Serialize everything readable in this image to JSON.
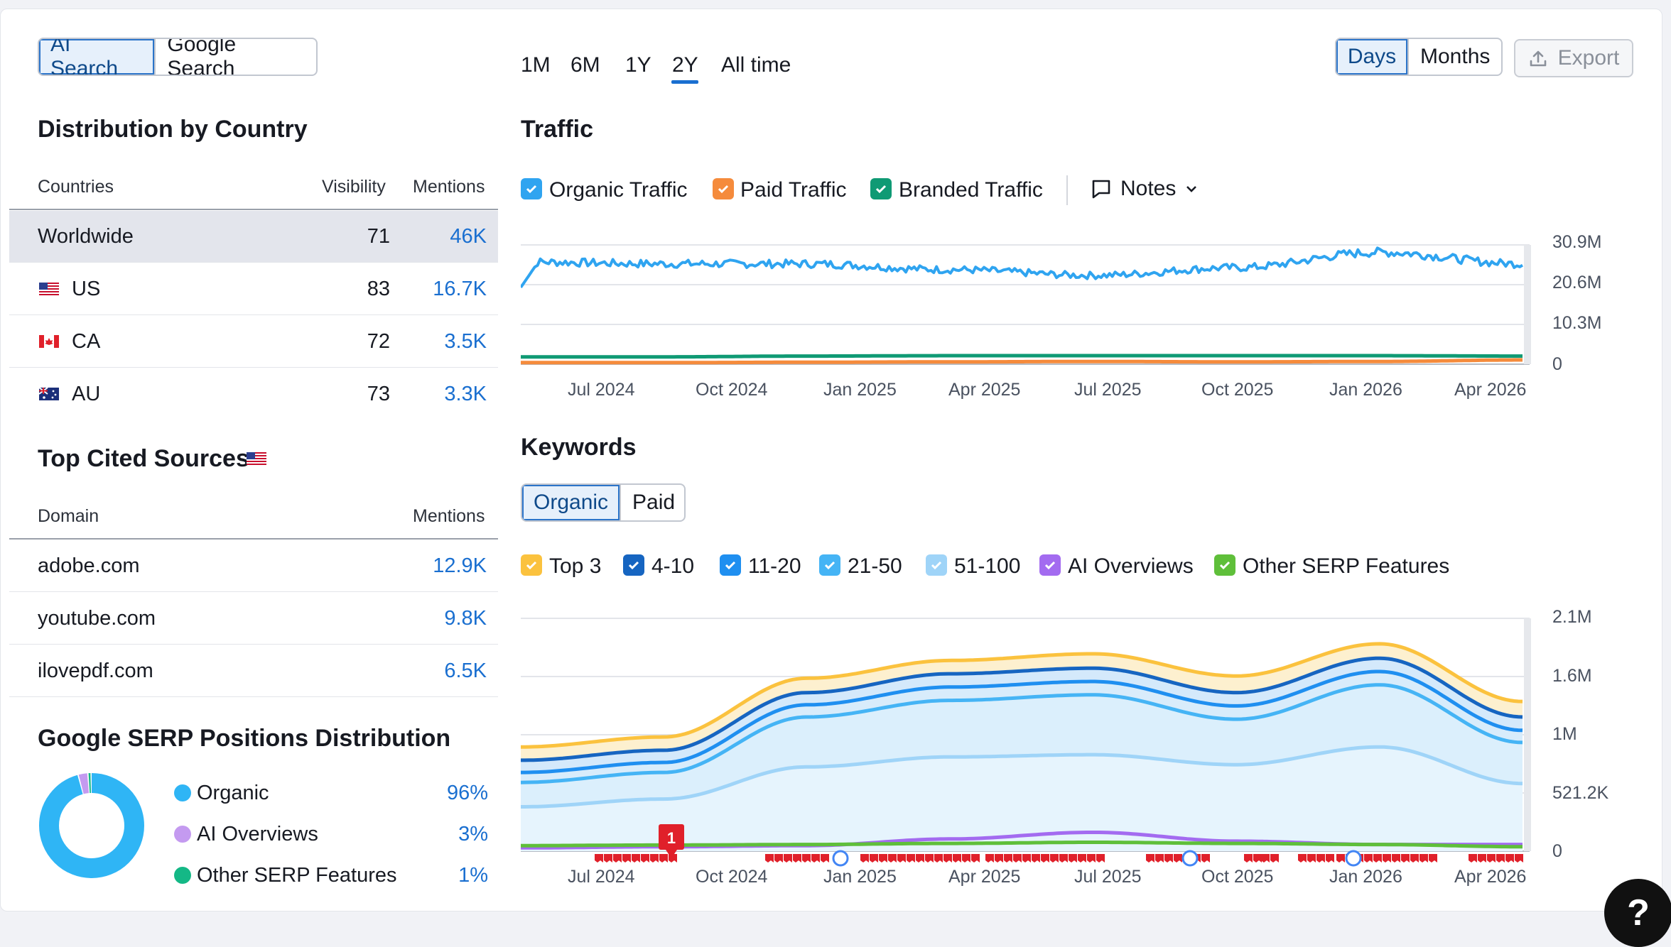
{
  "search_toggle": {
    "options": [
      "AI Search",
      "Google Search"
    ],
    "selected": "AI Search"
  },
  "periods": {
    "options": [
      "1M",
      "6M",
      "1Y",
      "2Y",
      "All time"
    ],
    "selected": "2Y"
  },
  "granularity": {
    "options": [
      "Days",
      "Months"
    ],
    "selected": "Days"
  },
  "export_label": "Export",
  "country": {
    "title": "Distribution by Country",
    "headers": {
      "countries": "Countries",
      "visibility": "Visibility",
      "mentions": "Mentions"
    },
    "rows": [
      {
        "name": "Worldwide",
        "visibility": "71",
        "mentions": "46K"
      },
      {
        "name": "US",
        "visibility": "83",
        "mentions": "16.7K"
      },
      {
        "name": "CA",
        "visibility": "72",
        "mentions": "3.5K"
      },
      {
        "name": "AU",
        "visibility": "73",
        "mentions": "3.3K"
      }
    ]
  },
  "sources": {
    "title": "Top Cited Sources",
    "headers": {
      "domain": "Domain",
      "mentions": "Mentions"
    },
    "rows": [
      {
        "domain": "adobe.com",
        "mentions": "12.9K"
      },
      {
        "domain": "youtube.com",
        "mentions": "9.8K"
      },
      {
        "domain": "ilovepdf.com",
        "mentions": "6.5K"
      }
    ]
  },
  "serp": {
    "title": "Google SERP Positions Distribution",
    "items": [
      {
        "label": "Organic",
        "value": "96%",
        "share": 96,
        "color": "#2fb5f5"
      },
      {
        "label": "AI Overviews",
        "value": "3%",
        "share": 3,
        "color": "#c49af0"
      },
      {
        "label": "Other SERP Features",
        "value": "1%",
        "share": 1,
        "color": "#14b886"
      }
    ]
  },
  "traffic": {
    "title": "Traffic",
    "legend": [
      {
        "label": "Organic Traffic",
        "color": "#2fa4f0"
      },
      {
        "label": "Paid Traffic",
        "color": "#f58b3c"
      },
      {
        "label": "Branded Traffic",
        "color": "#0f9a74"
      }
    ],
    "notes_label": "Notes",
    "y_ticks": [
      "30.9M",
      "20.6M",
      "10.3M",
      "0"
    ],
    "x_ticks": [
      "Jul 2024",
      "Oct 2024",
      "Jan 2025",
      "Apr 2025",
      "Jul 2025",
      "Oct 2025",
      "Jan 2026",
      "Apr 2026"
    ]
  },
  "keywords": {
    "title": "Keywords",
    "tabs": [
      "Organic",
      "Paid"
    ],
    "selected_tab": "Organic",
    "legend": [
      {
        "label": "Top 3",
        "color": "#fbc23e"
      },
      {
        "label": "4-10",
        "color": "#1665c1"
      },
      {
        "label": "11-20",
        "color": "#1f8ff0"
      },
      {
        "label": "21-50",
        "color": "#45b4f5"
      },
      {
        "label": "51-100",
        "color": "#9fd4f8"
      },
      {
        "label": "AI Overviews",
        "color": "#a36bf0"
      },
      {
        "label": "Other SERP Features",
        "color": "#5fbf3a"
      }
    ],
    "y_ticks": [
      "2.1M",
      "1.6M",
      "1M",
      "521.2K",
      "0"
    ],
    "x_ticks": [
      "Jul 2024",
      "Oct 2024",
      "Jan 2025",
      "Apr 2025",
      "Jul 2025",
      "Oct 2025",
      "Jan 2026",
      "Apr 2026"
    ],
    "note_badge": "1"
  },
  "chart_data": [
    {
      "type": "line",
      "title": "Traffic",
      "x": [
        "Jul 2024",
        "Oct 2024",
        "Jan 2025",
        "Apr 2025",
        "Jul 2025",
        "Oct 2025",
        "Jan 2026",
        "Apr 2026"
      ],
      "ylim": [
        0,
        30900000
      ],
      "series": [
        {
          "name": "Organic Traffic",
          "values": [
            26500000,
            26000000,
            26000000,
            24500000,
            23000000,
            25000000,
            29000000,
            26000000
          ]
        },
        {
          "name": "Paid Traffic",
          "values": [
            400000,
            400000,
            500000,
            600000,
            700000,
            600000,
            700000,
            1100000
          ]
        },
        {
          "name": "Branded Traffic",
          "values": [
            1900000,
            1900000,
            2100000,
            2200000,
            2200000,
            2200000,
            2200000,
            2100000
          ]
        }
      ]
    },
    {
      "type": "area",
      "title": "Keywords",
      "x": [
        "Jul 2024",
        "Oct 2024",
        "Jan 2025",
        "Apr 2025",
        "Jul 2025",
        "Oct 2025",
        "Jan 2026",
        "Apr 2026"
      ],
      "ylim": [
        0,
        2100000
      ],
      "series": [
        {
          "name": "Top 3",
          "values": [
            940000,
            1030000,
            1560000,
            1720000,
            1780000,
            1580000,
            1870000,
            1350000
          ]
        },
        {
          "name": "4-10",
          "values": [
            820000,
            910000,
            1430000,
            1600000,
            1650000,
            1430000,
            1740000,
            1210000
          ]
        },
        {
          "name": "11-20",
          "values": [
            710000,
            800000,
            1320000,
            1480000,
            1530000,
            1310000,
            1620000,
            1090000
          ]
        },
        {
          "name": "21-50",
          "values": [
            620000,
            710000,
            1210000,
            1360000,
            1410000,
            1190000,
            1500000,
            980000
          ]
        },
        {
          "name": "51-100",
          "values": [
            400000,
            470000,
            760000,
            850000,
            870000,
            780000,
            940000,
            610000
          ]
        },
        {
          "name": "AI Overviews",
          "values": [
            30000,
            40000,
            50000,
            110000,
            170000,
            90000,
            60000,
            60000
          ]
        },
        {
          "name": "Other SERP Features",
          "values": [
            50000,
            55000,
            60000,
            70000,
            80000,
            70000,
            60000,
            40000
          ]
        }
      ]
    }
  ]
}
